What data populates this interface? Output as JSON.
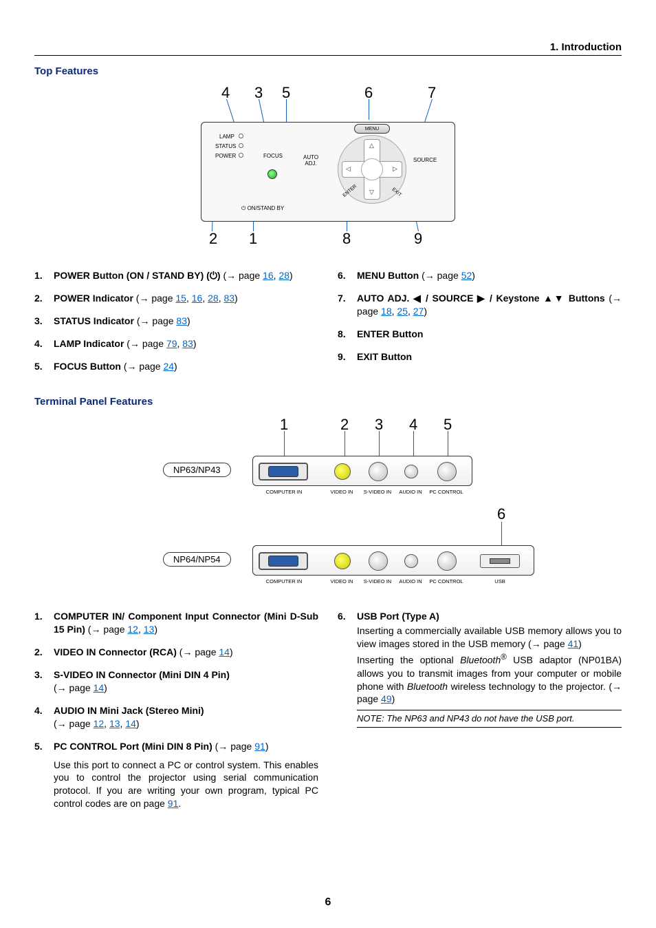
{
  "header": "1. Introduction",
  "pageNumber": "6",
  "topFeatures": {
    "title": "Top Features",
    "callouts": {
      "c1": "1",
      "c2": "2",
      "c3": "3",
      "c4": "4",
      "c5": "5",
      "c6": "6",
      "c7": "7",
      "c8": "8",
      "c9": "9"
    },
    "panelLabels": {
      "lamp": "LAMP",
      "status": "STATUS",
      "power": "POWER",
      "focus": "FOCUS",
      "onStandBy": "ON/STAND BY",
      "menu": "MENU",
      "autoAdj": "AUTO\nADJ.",
      "source": "SOURCE",
      "enter": "ENTER",
      "exit": "EXIT"
    },
    "leftList": [
      {
        "bold": "POWER Button (ON / STAND BY) (⏻)",
        "tail": " (→ page ",
        "links": [
          "16",
          "28"
        ],
        "close": ")"
      },
      {
        "bold": "POWER Indicator",
        "tail": " (→ page ",
        "links": [
          "15",
          "16",
          "28",
          "83"
        ],
        "close": ")"
      },
      {
        "bold": "STATUS Indicator",
        "tail": " (→ page ",
        "links": [
          "83"
        ],
        "close": ")"
      },
      {
        "bold": "LAMP Indicator",
        "tail": " (→ page ",
        "links": [
          "79",
          "83"
        ],
        "close": ")"
      },
      {
        "bold": "FOCUS Button",
        "tail": " (→ page ",
        "links": [
          "24"
        ],
        "close": ")"
      }
    ],
    "rightList": [
      {
        "bold": "MENU Button",
        "tail": " (→ page ",
        "links": [
          "52"
        ],
        "close": ")"
      },
      {
        "bold": "AUTO ADJ. ◀ / SOURCE ▶ / Keystone ▲▼ Buttons",
        "tail": " (→ page ",
        "links": [
          "18",
          "25",
          "27"
        ],
        "close": ")"
      },
      {
        "bold": "ENTER Button",
        "tail": "",
        "links": [],
        "close": ""
      },
      {
        "bold": "EXIT Button",
        "tail": "",
        "links": [],
        "close": ""
      }
    ]
  },
  "terminal": {
    "title": "Terminal Panel Features",
    "callouts": {
      "c1": "1",
      "c2": "2",
      "c3": "3",
      "c4": "4",
      "c5": "5",
      "c6": "6"
    },
    "models": {
      "a": "NP63/NP43",
      "b": "NP64/NP54"
    },
    "portLabels": {
      "computerIn": "COMPUTER IN",
      "videoIn": "VIDEO IN",
      "sVideoIn": "S-VIDEO IN",
      "audioIn": "AUDIO IN",
      "pcControl": "PC CONTROL",
      "usb": "USB"
    },
    "leftList": [
      {
        "bold": "COMPUTER IN/ Component Input Connector (Mini D-Sub 15 Pin)",
        "tail": " (→ page ",
        "links": [
          "12",
          "13"
        ],
        "close": ")"
      },
      {
        "bold": "VIDEO IN Connector (RCA)",
        "tail": " (→ page ",
        "links": [
          "14"
        ],
        "close": ")"
      },
      {
        "bold": "S-VIDEO IN Connector (Mini DIN 4 Pin)",
        "tail": "\n(→ page ",
        "links": [
          "14"
        ],
        "close": ")"
      },
      {
        "bold": "AUDIO IN Mini Jack (Stereo Mini)",
        "tail": "\n(→ page ",
        "links": [
          "12",
          "13",
          "14"
        ],
        "close": ")"
      },
      {
        "bold": "PC CONTROL Port (Mini DIN 8 Pin)",
        "tail": " (→ page ",
        "links": [
          "91"
        ],
        "close": ")",
        "body": "Use this port to connect a PC or control system. This enables you to control the projector using serial communication protocol. If you are writing your own program, typical PC control codes are on page ",
        "bodyLink": "91",
        "bodyClose": "."
      }
    ],
    "right": {
      "num": "6",
      "bold": "USB Port (Type A)",
      "p1a": "Inserting a commercially available USB memory allows you to view images stored in the USB memory (→ page ",
      "p1link": "41",
      "p1b": ")",
      "p2a": "Inserting the optional ",
      "p2i1": "Bluetooth",
      "p2reg": "®",
      "p2b": " USB adaptor (NP01BA) allows you to transmit images from your computer or mobile phone with ",
      "p2i2": "Bluetooth",
      "p2c": " wireless technology to the projector. (→ page ",
      "p2link": "49",
      "p2d": ")",
      "note": "NOTE: The NP63 and NP43 do not have the USB port."
    }
  },
  "colors": {
    "link": "#0066cc",
    "heading": "#0b2a7a",
    "leader": "#1560b8"
  }
}
